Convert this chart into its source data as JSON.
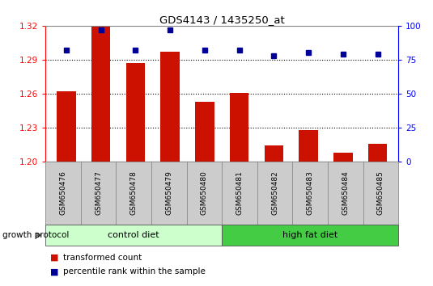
{
  "title": "GDS4143 / 1435250_at",
  "samples": [
    "GSM650476",
    "GSM650477",
    "GSM650478",
    "GSM650479",
    "GSM650480",
    "GSM650481",
    "GSM650482",
    "GSM650483",
    "GSM650484",
    "GSM650485"
  ],
  "transformed_counts": [
    1.262,
    1.319,
    1.287,
    1.297,
    1.253,
    1.261,
    1.214,
    1.228,
    1.208,
    1.216
  ],
  "percentile_ranks": [
    82,
    97,
    82,
    97,
    82,
    82,
    78,
    80,
    79,
    79
  ],
  "ylim_left": [
    1.2,
    1.32
  ],
  "ylim_right": [
    0,
    100
  ],
  "yticks_left": [
    1.2,
    1.23,
    1.26,
    1.29,
    1.32
  ],
  "yticks_right": [
    0,
    25,
    50,
    75,
    100
  ],
  "bar_color": "#cc1100",
  "dot_color": "#000099",
  "control_color": "#ccffcc",
  "high_fat_color": "#44cc44",
  "label_bg_color": "#cccccc",
  "protocol_label": "growth protocol",
  "control_label": "control diet",
  "high_fat_label": "high fat diet",
  "legend_bar_label": "transformed count",
  "legend_dot_label": "percentile rank within the sample",
  "dotted_line_color": "#000000",
  "bar_width": 0.55,
  "figsize": [
    5.35,
    3.54
  ],
  "dpi": 100
}
